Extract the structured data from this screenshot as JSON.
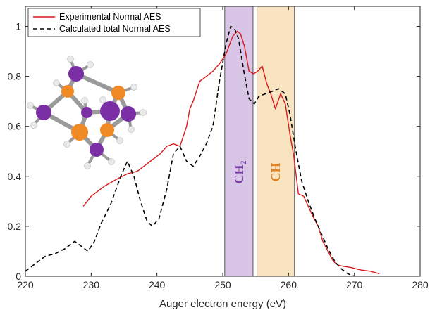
{
  "chart_data": {
    "type": "line",
    "title": "",
    "xlabel": "Auger electron energy (eV)",
    "ylabel": "",
    "xlim": [
      220,
      280
    ],
    "ylim": [
      0,
      1.08
    ],
    "xticks": [
      "220",
      "230",
      "240",
      "250",
      "260",
      "270",
      "280"
    ],
    "yticks": [
      "0",
      "0.2",
      "0.4",
      "0.6",
      "0.8",
      "1"
    ],
    "grid": false,
    "legend_position": "top-left",
    "series": [
      {
        "name": "Experimental Normal AES",
        "color": "#d7191c",
        "style": "solid",
        "x": [
          228.8,
          230,
          232,
          234,
          235.5,
          237,
          239,
          240.5,
          241.5,
          242.5,
          243.5,
          244.5,
          245,
          245.5,
          246.5,
          247.5,
          248.5,
          249.5,
          250.5,
          251.5,
          252.2,
          252.7,
          253.3,
          254,
          254.7,
          255.3,
          256,
          256.7,
          257.3,
          258,
          258.8,
          259.5,
          260.2,
          260.8,
          261.5,
          262.3,
          263,
          263.7,
          264.5,
          265.2,
          266,
          266.8,
          267.5,
          268.3,
          269.5,
          271,
          272.5,
          273.8
        ],
        "y": [
          0.28,
          0.32,
          0.36,
          0.39,
          0.41,
          0.42,
          0.46,
          0.49,
          0.52,
          0.53,
          0.52,
          0.6,
          0.67,
          0.7,
          0.78,
          0.8,
          0.82,
          0.85,
          0.89,
          0.96,
          0.98,
          0.97,
          0.92,
          0.82,
          0.81,
          0.82,
          0.84,
          0.77,
          0.73,
          0.67,
          0.73,
          0.69,
          0.57,
          0.48,
          0.33,
          0.32,
          0.28,
          0.24,
          0.2,
          0.14,
          0.1,
          0.06,
          0.045,
          0.04,
          0.035,
          0.025,
          0.02,
          0.01
        ]
      },
      {
        "name": "Calculated total Normal AES",
        "color": "#000000",
        "style": "dashed",
        "x": [
          220,
          221.5,
          223,
          224.5,
          226,
          227.5,
          228.5,
          229.5,
          230.5,
          231.5,
          233,
          234.5,
          235.5,
          236.5,
          237.5,
          238.5,
          239.3,
          240.3,
          241.5,
          242.5,
          243.5,
          244.5,
          245.5,
          246.5,
          247.5,
          248.5,
          249.5,
          250.5,
          251.2,
          251.8,
          252.4,
          253.2,
          254,
          254.8,
          255.5,
          256.5,
          257.5,
          258.5,
          259.5,
          260.2,
          261,
          262,
          263,
          264,
          265,
          266,
          267,
          268,
          269,
          270
        ],
        "y": [
          0.02,
          0.05,
          0.08,
          0.09,
          0.11,
          0.14,
          0.12,
          0.1,
          0.14,
          0.21,
          0.29,
          0.4,
          0.46,
          0.4,
          0.3,
          0.22,
          0.2,
          0.23,
          0.35,
          0.49,
          0.52,
          0.46,
          0.44,
          0.48,
          0.53,
          0.6,
          0.78,
          0.93,
          1.0,
          0.99,
          0.95,
          0.82,
          0.71,
          0.69,
          0.72,
          0.73,
          0.74,
          0.75,
          0.73,
          0.65,
          0.52,
          0.38,
          0.3,
          0.23,
          0.17,
          0.11,
          0.06,
          0.03,
          0.01,
          0.0
        ]
      }
    ],
    "bands": [
      {
        "label_main": "CH",
        "label_sub": "2",
        "x_start": 250.3,
        "x_end": 254.6,
        "fill": "#d9c6e6",
        "text_color": "#7a3fa6"
      },
      {
        "label_main": "CH",
        "label_sub": "",
        "x_start": 255.2,
        "x_end": 260.9,
        "fill": "#f8e4c1",
        "text_color": "#e8821c"
      }
    ],
    "molecule": {
      "atom_colors": {
        "carbon_ch2": "#7b2fa5",
        "carbon_ch": "#f08a24",
        "hydrogen": "#e9e9e9",
        "bond": "#9a9a9a"
      }
    }
  }
}
